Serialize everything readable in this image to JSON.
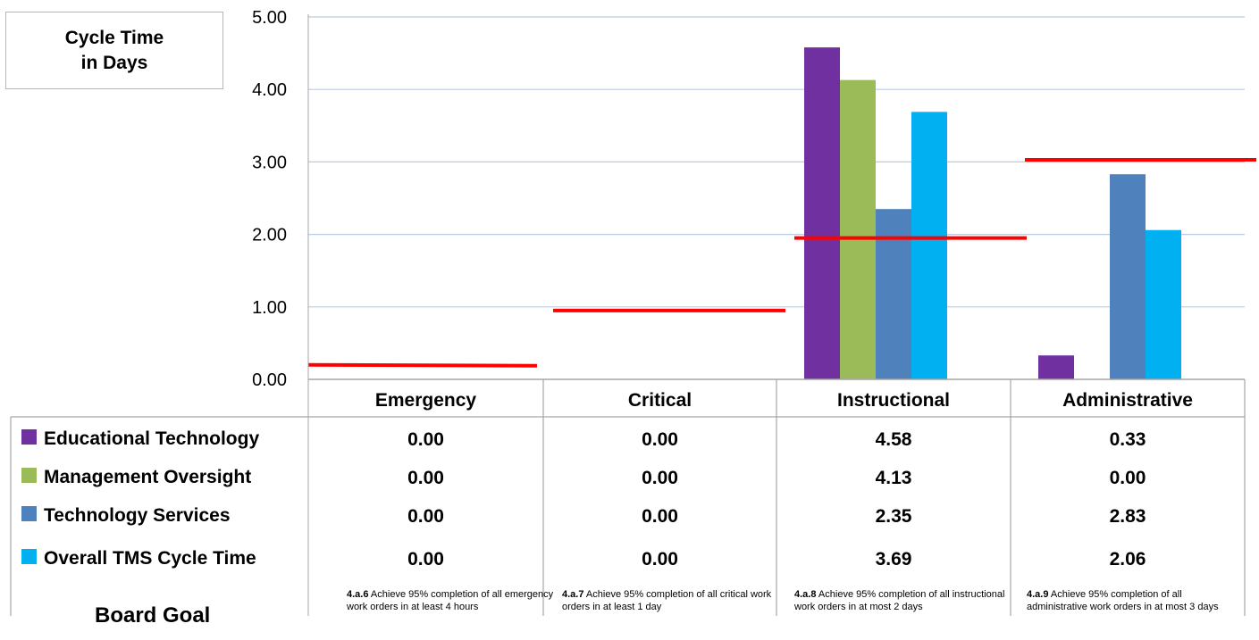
{
  "title_box": {
    "line1": "Cycle Time",
    "line2": "in Days"
  },
  "chart_data": {
    "type": "bar",
    "categories": [
      "Emergency",
      "Critical",
      "Instructional",
      "Administrative"
    ],
    "series": [
      {
        "name": "Educational Technology",
        "values": [
          0.0,
          0.0,
          4.58,
          0.33
        ],
        "color": "#7030a0"
      },
      {
        "name": "Management Oversight",
        "values": [
          0.0,
          0.0,
          4.13,
          0.0
        ],
        "color": "#9bbb59"
      },
      {
        "name": "Technology Services",
        "values": [
          0.0,
          0.0,
          2.35,
          2.83
        ],
        "color": "#4f81bd"
      },
      {
        "name": "Overall TMS Cycle Time",
        "values": [
          0.0,
          0.0,
          3.69,
          2.06
        ],
        "color": "#00b0f0"
      }
    ],
    "table_values": [
      [
        "0.00",
        "0.00",
        "4.58",
        "0.33"
      ],
      [
        "0.00",
        "0.00",
        "4.13",
        "0.00"
      ],
      [
        "0.00",
        "0.00",
        "2.35",
        "2.83"
      ],
      [
        "0.00",
        "0.00",
        "3.69",
        "2.06"
      ]
    ],
    "y_ticks": [
      "0.00",
      "1.00",
      "2.00",
      "3.00",
      "4.00",
      "5.00"
    ],
    "ylim": [
      0,
      5
    ],
    "grid": true,
    "goal_lines": [
      0.2,
      0.95,
      1.95,
      3.03
    ],
    "goal_line_color": "#ff0000",
    "board_goal_label": "Board Goal",
    "board_goals": [
      {
        "code": "4.a.6",
        "text": "Achieve 95% completion of all emergency work orders in at least 4 hours"
      },
      {
        "code": "4.a.7",
        "text": "Achieve 95% completion of all critical work orders in at least 1 day"
      },
      {
        "code": "4.a.8",
        "text": "Achieve 95% completion of all instructional work orders in at most 2 days"
      },
      {
        "code": "4.a.9",
        "text": "Achieve 95% completion of all administrative work orders in at most 3 days"
      }
    ]
  }
}
